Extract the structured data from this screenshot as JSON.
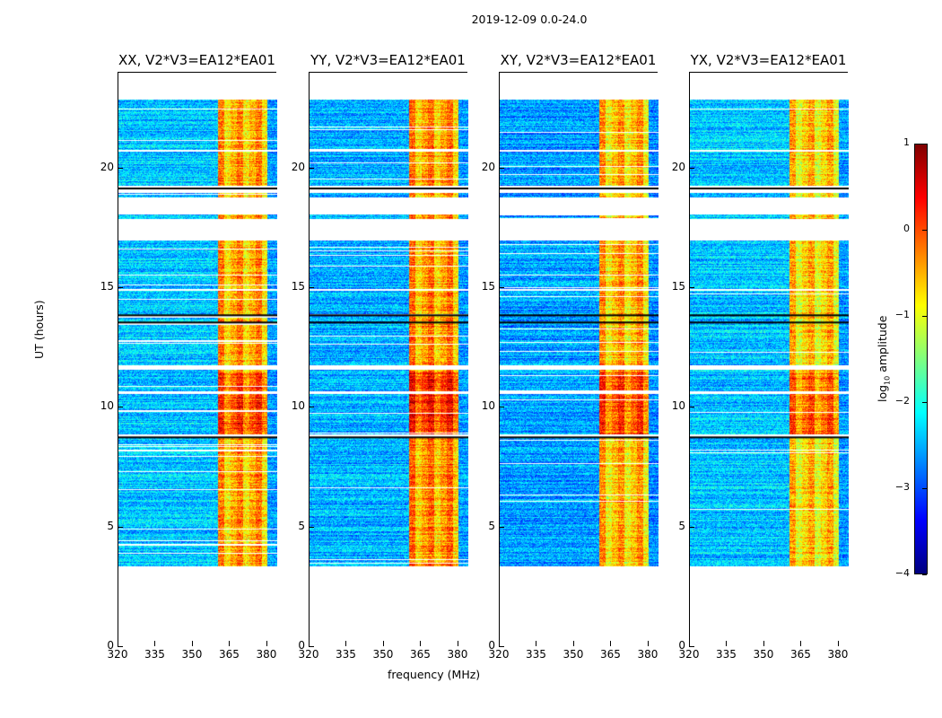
{
  "suptitle": "2019-12-09 0.0-24.0",
  "chart_data": {
    "type": "heatmap",
    "title": "2019-12-09 0.0-24.0",
    "xlabel": "frequency (MHz)",
    "ylabel": "UT (hours)",
    "xlim": [
      320,
      384
    ],
    "ylim": [
      0,
      24
    ],
    "xticks": [
      "320",
      "335",
      "350",
      "365",
      "380"
    ],
    "yticks": [
      "0",
      "5",
      "10",
      "15",
      "20"
    ],
    "panels": [
      {
        "title": "XX, V2*V3=EA12*EA01",
        "band_levels": [
          -2.4,
          -0.6,
          -2.6
        ]
      },
      {
        "title": "YY, V2*V3=EA12*EA01",
        "band_levels": [
          -2.5,
          -0.5,
          -2.6
        ]
      },
      {
        "title": "XY, V2*V3=EA12*EA01",
        "band_levels": [
          -2.6,
          -0.7,
          -2.7
        ]
      },
      {
        "title": "YX, V2*V3=EA12*EA01",
        "band_levels": [
          -2.4,
          -0.8,
          -2.6
        ]
      }
    ],
    "frequency_bands_mhz": [
      [
        320,
        360
      ],
      [
        360,
        380
      ],
      [
        380,
        384
      ]
    ],
    "data_time_ranges_hours": [
      [
        3.4,
        8.8
      ],
      [
        8.9,
        10.6
      ],
      [
        10.7,
        11.6
      ],
      [
        11.8,
        14.9
      ],
      [
        15.0,
        17.0
      ],
      [
        17.9,
        18.1
      ],
      [
        18.8,
        19.0
      ],
      [
        19.3,
        20.7
      ],
      [
        20.8,
        22.9
      ]
    ],
    "colorbar": {
      "label": "log10 amplitude",
      "range": [
        -4,
        1
      ],
      "ticks": [
        "1",
        "0",
        "−1",
        "−2",
        "−3",
        "−4"
      ],
      "colormap": "jet"
    }
  }
}
